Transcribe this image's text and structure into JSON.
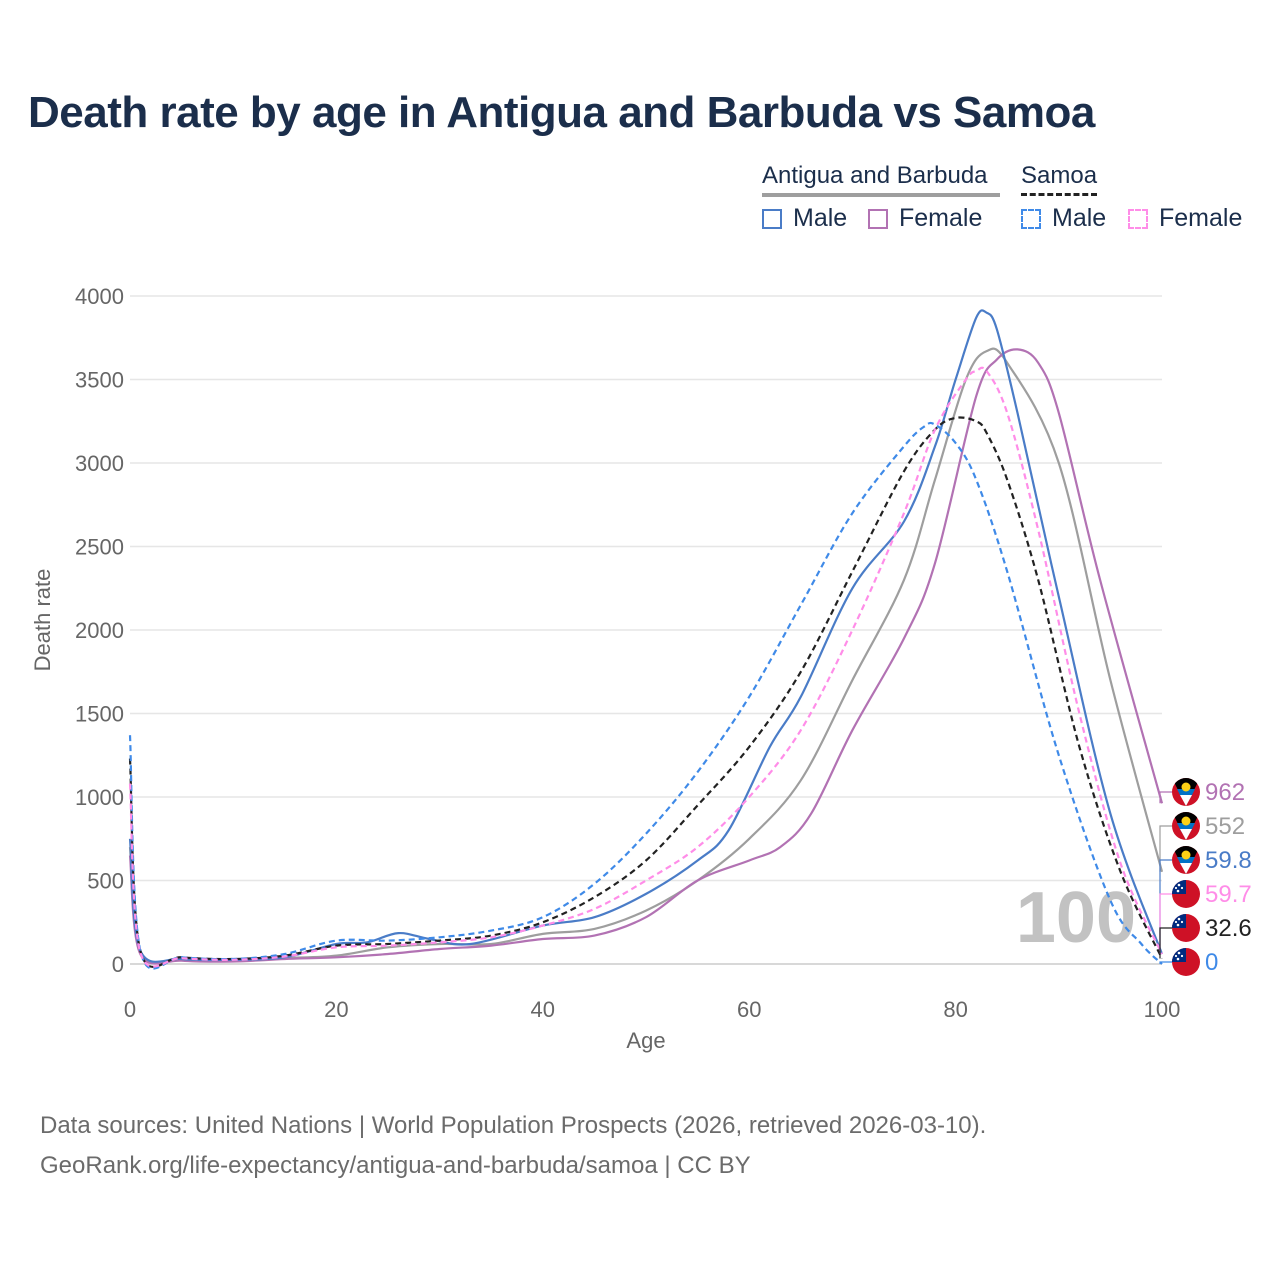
{
  "title": "Death rate by age in Antigua and Barbuda vs Samoa",
  "legend": {
    "groups": [
      {
        "label": "Antigua and Barbuda",
        "color": "#9e9e9e",
        "dashed": false
      },
      {
        "label": "Samoa",
        "color": "#222222",
        "dashed": true
      }
    ],
    "items": [
      {
        "label": "Male",
        "color": "#4a7cc7",
        "dashed": false
      },
      {
        "label": "Female",
        "color": "#b272b3",
        "dashed": false
      },
      {
        "label": "Male",
        "color": "#3f8ae8",
        "dashed": true
      },
      {
        "label": "Female",
        "color": "#ff8de8",
        "dashed": true
      }
    ]
  },
  "overlay_age": "100",
  "footer": {
    "line1": "Data sources: United Nations | World Population Prospects (2026, retrieved 2026-03-10).",
    "line2": "GeoRank.org/life-expectancy/antigua-and-barbuda/samoa | CC BY"
  },
  "chart_data": {
    "type": "line",
    "title": "Death rate by age in Antigua and Barbuda vs Samoa",
    "xlabel": "Age",
    "ylabel": "Death rate",
    "xlim": [
      0,
      100
    ],
    "ylim": [
      0,
      4000
    ],
    "xticks": [
      0,
      20,
      40,
      60,
      80,
      100
    ],
    "yticks": [
      0,
      500,
      1000,
      1500,
      2000,
      2500,
      3000,
      3500,
      4000
    ],
    "grid": true,
    "series": [
      {
        "name": "Antigua and Barbuda Total",
        "color": "#9e9e9e",
        "dashed": false,
        "end_label": "552",
        "points": [
          [
            0,
            700
          ],
          [
            1,
            70
          ],
          [
            5,
            25
          ],
          [
            10,
            20
          ],
          [
            15,
            35
          ],
          [
            20,
            50
          ],
          [
            25,
            100
          ],
          [
            30,
            120
          ],
          [
            35,
            120
          ],
          [
            40,
            180
          ],
          [
            45,
            210
          ],
          [
            50,
            320
          ],
          [
            55,
            500
          ],
          [
            60,
            750
          ],
          [
            65,
            1100
          ],
          [
            70,
            1700
          ],
          [
            75,
            2300
          ],
          [
            78,
            2900
          ],
          [
            81,
            3500
          ],
          [
            83,
            3670
          ],
          [
            85,
            3600
          ],
          [
            90,
            3000
          ],
          [
            95,
            1700
          ],
          [
            100,
            552
          ]
        ]
      },
      {
        "name": "Antigua and Barbuda Female",
        "color": "#b272b3",
        "dashed": false,
        "end_label": "962",
        "points": [
          [
            0,
            650
          ],
          [
            1,
            60
          ],
          [
            5,
            20
          ],
          [
            10,
            15
          ],
          [
            15,
            30
          ],
          [
            20,
            40
          ],
          [
            25,
            60
          ],
          [
            30,
            90
          ],
          [
            35,
            110
          ],
          [
            40,
            150
          ],
          [
            45,
            170
          ],
          [
            50,
            280
          ],
          [
            55,
            500
          ],
          [
            60,
            620
          ],
          [
            63,
            700
          ],
          [
            66,
            900
          ],
          [
            70,
            1400
          ],
          [
            75,
            1950
          ],
          [
            78,
            2400
          ],
          [
            82,
            3400
          ],
          [
            84,
            3620
          ],
          [
            86,
            3680
          ],
          [
            88,
            3600
          ],
          [
            90,
            3300
          ],
          [
            94,
            2300
          ],
          [
            100,
            962
          ]
        ]
      },
      {
        "name": "Antigua and Barbuda Male",
        "color": "#4a7cc7",
        "dashed": false,
        "end_label": "59.8",
        "points": [
          [
            0,
            750
          ],
          [
            1,
            80
          ],
          [
            5,
            30
          ],
          [
            10,
            25
          ],
          [
            15,
            40
          ],
          [
            20,
            120
          ],
          [
            23,
            130
          ],
          [
            26,
            185
          ],
          [
            29,
            150
          ],
          [
            33,
            120
          ],
          [
            40,
            230
          ],
          [
            45,
            280
          ],
          [
            50,
            420
          ],
          [
            55,
            620
          ],
          [
            58,
            800
          ],
          [
            62,
            1300
          ],
          [
            65,
            1600
          ],
          [
            70,
            2250
          ],
          [
            75,
            2650
          ],
          [
            78,
            3100
          ],
          [
            80,
            3500
          ],
          [
            82,
            3870
          ],
          [
            83,
            3900
          ],
          [
            84,
            3800
          ],
          [
            86,
            3300
          ],
          [
            90,
            2200
          ],
          [
            95,
            900
          ],
          [
            100,
            60
          ]
        ]
      },
      {
        "name": "Samoa Total",
        "color": "#222222",
        "dashed": true,
        "end_label": "32.6",
        "points": [
          [
            0,
            1230
          ],
          [
            1,
            80
          ],
          [
            5,
            40
          ],
          [
            10,
            30
          ],
          [
            15,
            50
          ],
          [
            20,
            110
          ],
          [
            25,
            120
          ],
          [
            30,
            140
          ],
          [
            35,
            170
          ],
          [
            40,
            250
          ],
          [
            45,
            400
          ],
          [
            50,
            620
          ],
          [
            55,
            950
          ],
          [
            60,
            1300
          ],
          [
            65,
            1750
          ],
          [
            70,
            2350
          ],
          [
            75,
            2950
          ],
          [
            78,
            3200
          ],
          [
            80,
            3270
          ],
          [
            82,
            3250
          ],
          [
            83,
            3180
          ],
          [
            85,
            2900
          ],
          [
            88,
            2300
          ],
          [
            92,
            1300
          ],
          [
            96,
            550
          ],
          [
            100,
            33
          ]
        ]
      },
      {
        "name": "Samoa Male",
        "color": "#3f8ae8",
        "dashed": true,
        "end_label": "0",
        "points": [
          [
            0,
            1370
          ],
          [
            1,
            80
          ],
          [
            5,
            40
          ],
          [
            10,
            30
          ],
          [
            15,
            60
          ],
          [
            20,
            140
          ],
          [
            25,
            140
          ],
          [
            30,
            160
          ],
          [
            35,
            200
          ],
          [
            40,
            280
          ],
          [
            45,
            480
          ],
          [
            50,
            780
          ],
          [
            55,
            1150
          ],
          [
            60,
            1600
          ],
          [
            65,
            2150
          ],
          [
            70,
            2700
          ],
          [
            75,
            3100
          ],
          [
            77,
            3220
          ],
          [
            78,
            3230
          ],
          [
            80,
            3120
          ],
          [
            82,
            2900
          ],
          [
            85,
            2350
          ],
          [
            90,
            1250
          ],
          [
            95,
            380
          ],
          [
            98,
            120
          ],
          [
            100,
            0
          ]
        ]
      },
      {
        "name": "Samoa Female",
        "color": "#ff8de8",
        "dashed": true,
        "end_label": "59.7",
        "points": [
          [
            0,
            1080
          ],
          [
            1,
            70
          ],
          [
            5,
            35
          ],
          [
            10,
            25
          ],
          [
            15,
            45
          ],
          [
            20,
            100
          ],
          [
            25,
            110
          ],
          [
            30,
            130
          ],
          [
            35,
            160
          ],
          [
            40,
            230
          ],
          [
            45,
            330
          ],
          [
            50,
            500
          ],
          [
            55,
            700
          ],
          [
            60,
            1000
          ],
          [
            65,
            1400
          ],
          [
            70,
            2000
          ],
          [
            75,
            2700
          ],
          [
            78,
            3200
          ],
          [
            81,
            3500
          ],
          [
            82,
            3550
          ],
          [
            83,
            3550
          ],
          [
            85,
            3300
          ],
          [
            88,
            2600
          ],
          [
            92,
            1500
          ],
          [
            96,
            600
          ],
          [
            100,
            60
          ]
        ]
      }
    ],
    "end_markers": [
      {
        "label": "962",
        "color": "#b272b3",
        "flag": "antigua-and-barbuda"
      },
      {
        "label": "552",
        "color": "#9e9e9e",
        "flag": "antigua-and-barbuda"
      },
      {
        "label": "59.8",
        "color": "#4a7cc7",
        "flag": "antigua-and-barbuda"
      },
      {
        "label": "59.7",
        "color": "#ff8de8",
        "flag": "samoa"
      },
      {
        "label": "32.6",
        "color": "#222222",
        "flag": "samoa"
      },
      {
        "label": "0",
        "color": "#3f8ae8",
        "flag": "samoa"
      }
    ]
  }
}
